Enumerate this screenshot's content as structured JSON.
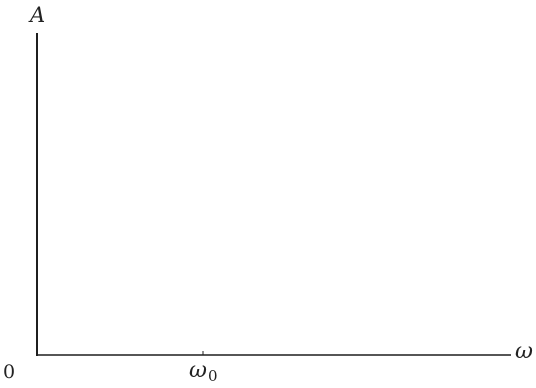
{
  "diagram": {
    "y_axis_label": "A",
    "x_axis_label": "ω",
    "origin_label": "0",
    "x_tick": {
      "symbol": "ω",
      "subscript": "0"
    }
  },
  "colors": {
    "axis": "#1f1f1f",
    "text": "#222222",
    "background": "#ffffff"
  }
}
